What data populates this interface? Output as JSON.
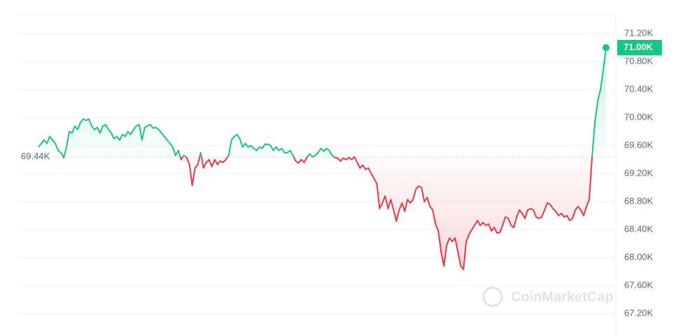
{
  "chart_data": {
    "type": "line",
    "values": [
      69580,
      69630,
      69680,
      69630,
      69730,
      69680,
      69630,
      69530,
      69500,
      69430,
      69580,
      69800,
      69780,
      69880,
      69830,
      69930,
      69980,
      69960,
      69980,
      69880,
      69830,
      69860,
      69780,
      69880,
      69900,
      69830,
      69780,
      69700,
      69730,
      69680,
      69760,
      69730,
      69800,
      69760,
      69830,
      69880,
      69900,
      69680,
      69860,
      69880,
      69900,
      69850,
      69860,
      69830,
      69780,
      69730,
      69680,
      69630,
      69580,
      69460,
      69530,
      69400,
      69460,
      69430,
      69330,
      69030,
      69280,
      69330,
      69500,
      69280,
      69360,
      69400,
      69300,
      69400,
      69330,
      69380,
      69360,
      69400,
      69460,
      69680,
      69730,
      69760,
      69700,
      69580,
      69630,
      69580,
      69600,
      69560,
      69530,
      69580,
      69560,
      69620,
      69620,
      69600,
      69530,
      69580,
      69530,
      69560,
      69500,
      69500,
      69530,
      69460,
      69380,
      69350,
      69400,
      69360,
      69430,
      69480,
      69440,
      69460,
      69500,
      69560,
      69520,
      69560,
      69530,
      69460,
      69430,
      69420,
      69380,
      69420,
      69400,
      69430,
      69400,
      69440,
      69360,
      69280,
      69320,
      69260,
      69280,
      69200,
      69130,
      69060,
      68700,
      68780,
      68880,
      68700,
      68830,
      68680,
      68520,
      68680,
      68780,
      68660,
      68830,
      68780,
      68830,
      68980,
      69020,
      69000,
      68800,
      68860,
      68730,
      68680,
      68480,
      68380,
      68080,
      67880,
      68180,
      68280,
      68230,
      68280,
      68080,
      67880,
      67830,
      68230,
      68330,
      68400,
      68460,
      68530,
      68460,
      68500,
      68460,
      68480,
      68380,
      68430,
      68350,
      68360,
      68460,
      68580,
      68560,
      68460,
      68430,
      68580,
      68680,
      68630,
      68560,
      68680,
      68700,
      68680,
      68580,
      68560,
      68580,
      68680,
      68780,
      68760,
      68700,
      68660,
      68600,
      68630,
      68580,
      68600,
      68530,
      68560,
      68680,
      68730,
      68680,
      68600,
      68730,
      68830,
      69430,
      69930,
      70230,
      70400,
      70680,
      71000
    ],
    "ylim": [
      66880,
      71480
    ],
    "yticks": [
      {
        "value": 67200,
        "label": "67.20K"
      },
      {
        "value": 67600,
        "label": "67.60K"
      },
      {
        "value": 68000,
        "label": "68.00K"
      },
      {
        "value": 68400,
        "label": "68.40K"
      },
      {
        "value": 68800,
        "label": "68.80K"
      },
      {
        "value": 69200,
        "label": "69.20K"
      },
      {
        "value": 69600,
        "label": "69.60K"
      },
      {
        "value": 70000,
        "label": "70.00K"
      },
      {
        "value": 70400,
        "label": "70.40K"
      },
      {
        "value": 70800,
        "label": "70.80K"
      },
      {
        "value": 71200,
        "label": "71.20K"
      }
    ],
    "baseline": {
      "value": 69440,
      "label": "69.44K"
    },
    "last_price": {
      "value": 71000,
      "label": "71.00K"
    },
    "up_color": "#16c784",
    "down_color": "#ea3943",
    "grid": true,
    "watermark": "CoinMarketCap"
  }
}
